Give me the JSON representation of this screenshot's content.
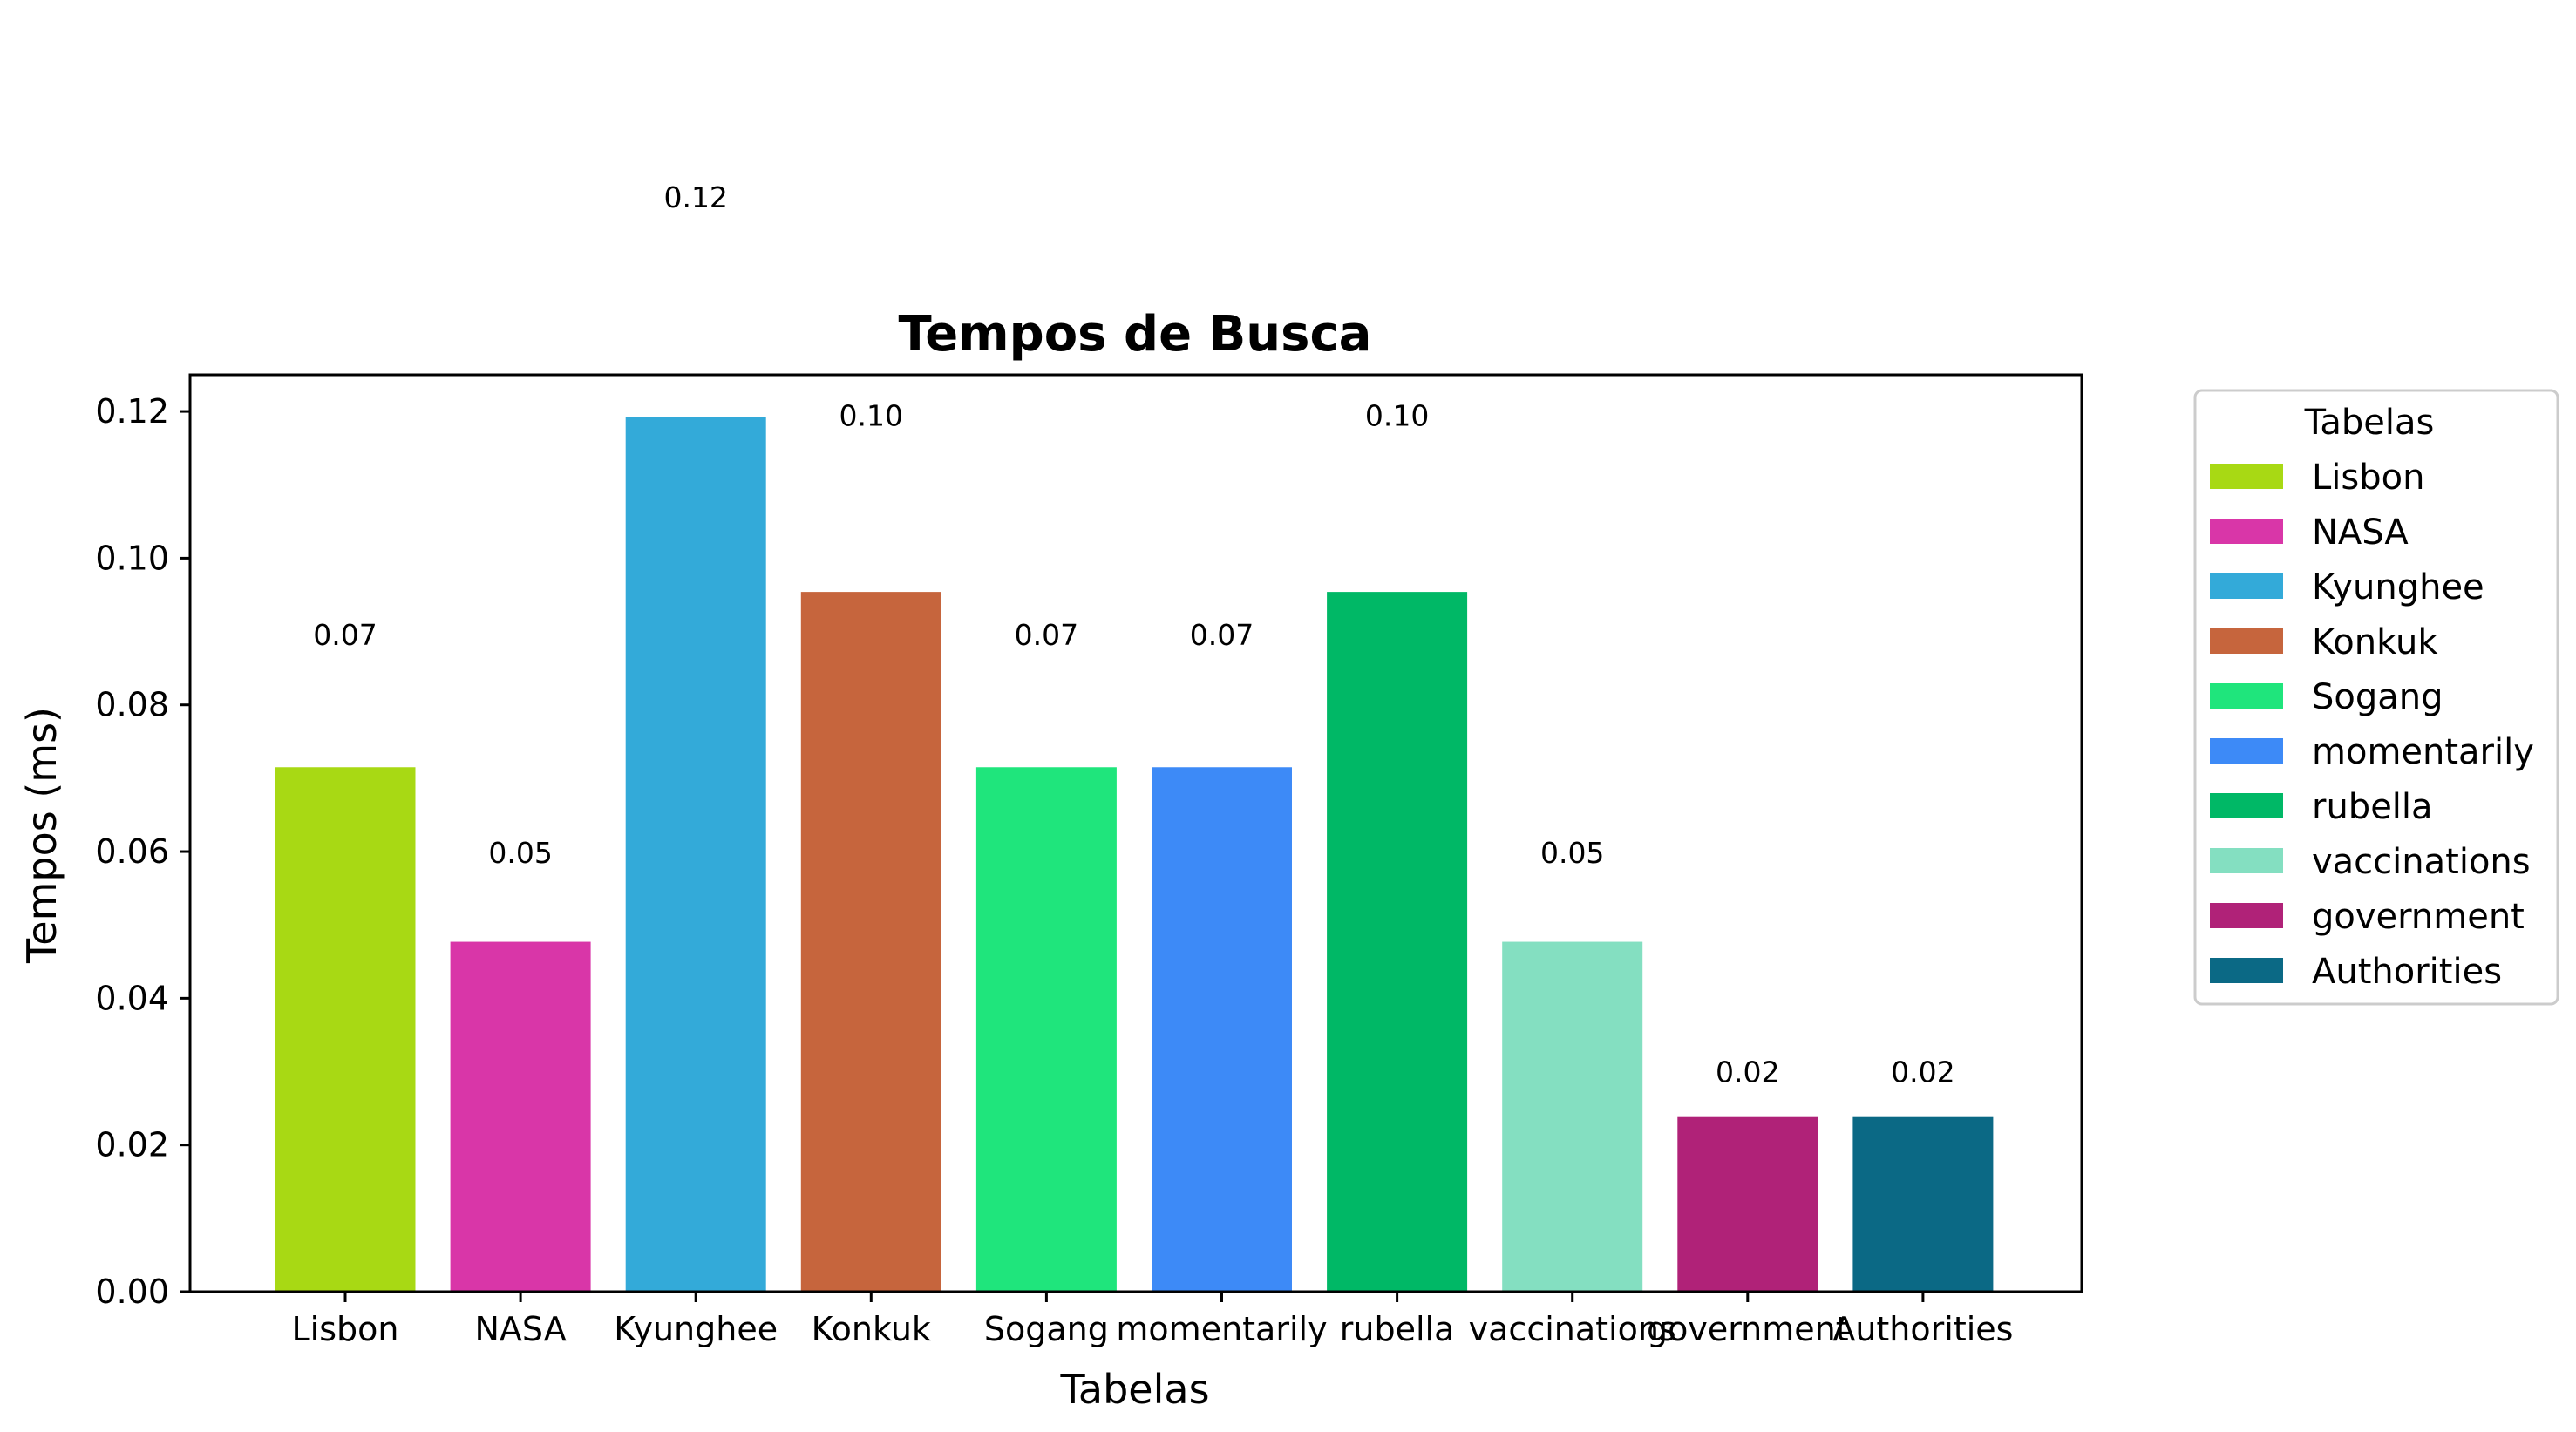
{
  "chart_data": {
    "type": "bar",
    "title": "Tempos de Busca",
    "xlabel": "Tabelas",
    "ylabel": "Tempos (ms)",
    "ylim": [
      0,
      0.125
    ],
    "yticks": [
      "0.00",
      "0.02",
      "0.04",
      "0.06",
      "0.08",
      "0.10",
      "0.12"
    ],
    "ytick_values": [
      0,
      0.02,
      0.04,
      0.06,
      0.08,
      0.1,
      0.12
    ],
    "categories": [
      "Lisbon",
      "NASA",
      "Kyunghee",
      "Konkuk",
      "Sogang",
      "momentarily",
      "rubella",
      "vaccinations",
      "government",
      "Authorities"
    ],
    "values": [
      0.0715,
      0.0477,
      0.1192,
      0.0954,
      0.0715,
      0.0715,
      0.0954,
      0.0477,
      0.0238,
      0.0238
    ],
    "data_labels": [
      "0.07",
      "0.05",
      "0.12",
      "0.10",
      "0.07",
      "0.07",
      "0.10",
      "0.05",
      "0.02",
      "0.02"
    ],
    "colors": [
      "#a8d914",
      "#d936a8",
      "#33aad9",
      "#c6653d",
      "#1fe57c",
      "#3d8af7",
      "#00b866",
      "#84dfc1",
      "#b02278",
      "#0b6985"
    ],
    "legend": {
      "title": "Tabelas",
      "placement": "outside-right-top",
      "entries": [
        "Lisbon",
        "NASA",
        "Kyunghee",
        "Konkuk",
        "Sogang",
        "momentarily",
        "rubella",
        "vaccinations",
        "government",
        "Authorities"
      ]
    },
    "grid": false
  }
}
